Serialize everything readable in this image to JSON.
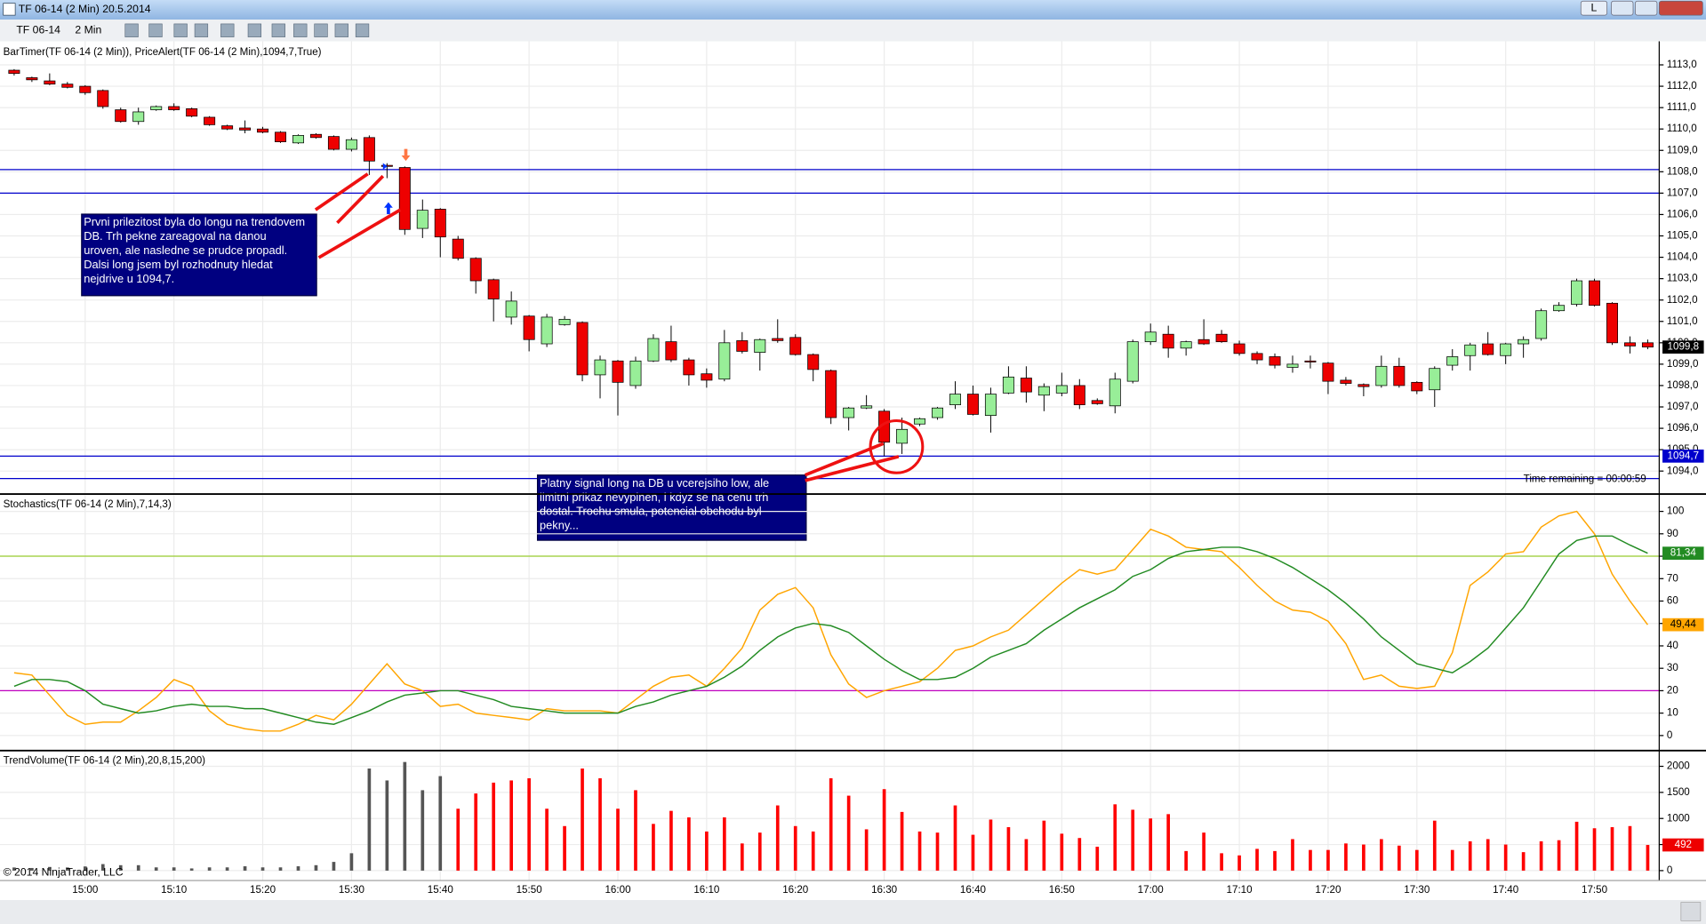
{
  "window": {
    "title": "TF 06-14 (2 Min)  20.5.2014",
    "button": "L"
  },
  "toolbar": {
    "instrument": "TF 06-14",
    "interval": "2 Min"
  },
  "copyright": "© 2014 NinjaTrader, LLC",
  "chart_data": [
    {
      "type": "candlestick",
      "title": "BarTimer(TF 06-14 (2 Min)), PriceAlert(TF 06-14 (2 Min),1094,7,True)",
      "categories": [
        null,
        null,
        null,
        null,
        "15:00",
        null,
        null,
        null,
        null,
        "15:10",
        null,
        null,
        null,
        null,
        "15:20",
        null,
        null,
        null,
        null,
        "15:30",
        null,
        null,
        null,
        null,
        "15:40",
        null,
        null,
        null,
        null,
        "15:50",
        null,
        null,
        null,
        null,
        "16:00",
        null,
        null,
        null,
        null,
        "16:10",
        null,
        null,
        null,
        null,
        "16:20",
        null,
        null,
        null,
        null,
        "16:30",
        null,
        null,
        null,
        null,
        "16:40",
        null,
        null,
        null,
        null,
        "16:50",
        null,
        null,
        null,
        null,
        "17:00",
        null,
        null,
        null,
        null,
        "17:10",
        null,
        null,
        null,
        null,
        "17:20",
        null,
        null,
        null,
        null,
        "17:30",
        null,
        null,
        null,
        null,
        "17:40",
        null,
        null,
        null,
        null,
        "17:50",
        null,
        null,
        null
      ],
      "open": [
        1112.75,
        1112.4,
        1112.25,
        1112.1,
        1112.0,
        1111.8,
        1110.9,
        1110.35,
        1110.9,
        1111.05,
        1110.95,
        1110.55,
        1110.15,
        1110.05,
        1110.0,
        1109.85,
        1109.35,
        1109.75,
        1109.65,
        1109.05,
        1109.6,
        1108.3,
        1108.2,
        1105.35,
        1106.25,
        1104.85,
        1103.95,
        1102.95,
        1101.2,
        1101.25,
        1099.95,
        1100.85,
        1100.95,
        1098.5,
        1099.15,
        1098.0,
        1099.15,
        1100.05,
        1099.2,
        1098.55,
        1098.3,
        1100.1,
        1099.55,
        1100.2,
        1100.25,
        1099.45,
        1098.7,
        1096.5,
        1096.95,
        1096.8,
        1095.3,
        1096.2,
        1096.5,
        1097.1,
        1097.6,
        1096.6,
        1097.65,
        1098.35,
        1097.55,
        1097.65,
        1098.0,
        1097.3,
        1097.05,
        1098.2,
        1100.05,
        1100.4,
        1099.75,
        1100.15,
        1100.4,
        1099.95,
        1099.5,
        1099.35,
        1098.85,
        1099.15,
        1099.05,
        1098.25,
        1098.05,
        1098.0,
        1098.9,
        1098.15,
        1097.8,
        1098.95,
        1099.4,
        1099.95,
        1099.4,
        1099.95,
        1100.2,
        1101.5,
        1101.8,
        1102.9,
        1101.85,
        1100.0,
        1100.0
      ],
      "high": [
        1112.8,
        1112.45,
        1112.6,
        1112.2,
        1112.05,
        1111.85,
        1111.0,
        1111.0,
        1111.1,
        1111.2,
        1111.0,
        1110.6,
        1110.2,
        1110.4,
        1110.1,
        1109.9,
        1109.75,
        1109.8,
        1109.7,
        1109.6,
        1109.7,
        1108.4,
        1108.25,
        1106.7,
        1106.3,
        1105.0,
        1104.0,
        1103.0,
        1102.4,
        1101.3,
        1101.35,
        1101.25,
        1101.0,
        1099.4,
        1099.2,
        1099.35,
        1100.4,
        1100.8,
        1099.3,
        1098.8,
        1100.6,
        1100.5,
        1100.2,
        1101.1,
        1100.4,
        1099.5,
        1098.75,
        1097.0,
        1097.55,
        1096.9,
        1096.5,
        1096.5,
        1097.0,
        1098.2,
        1098.0,
        1097.9,
        1098.9,
        1098.9,
        1098.1,
        1098.6,
        1098.3,
        1097.4,
        1098.6,
        1100.15,
        1100.9,
        1100.8,
        1100.1,
        1101.1,
        1100.6,
        1100.1,
        1099.6,
        1099.5,
        1099.4,
        1099.4,
        1099.1,
        1098.4,
        1098.1,
        1099.4,
        1099.3,
        1098.2,
        1098.9,
        1099.7,
        1100.0,
        1100.5,
        1100.0,
        1100.3,
        1101.6,
        1101.9,
        1103.0,
        1103.0,
        1101.9,
        1100.3,
        1100.15
      ],
      "low": [
        1112.5,
        1112.2,
        1112.05,
        1111.9,
        1111.6,
        1110.95,
        1110.3,
        1110.2,
        1110.85,
        1110.85,
        1110.55,
        1110.15,
        1109.95,
        1109.8,
        1109.8,
        1109.35,
        1109.3,
        1109.55,
        1109.0,
        1108.95,
        1107.85,
        1107.7,
        1105.05,
        1104.9,
        1104.0,
        1103.85,
        1102.3,
        1101.0,
        1100.85,
        1099.6,
        1099.8,
        1100.8,
        1098.2,
        1097.4,
        1096.6,
        1097.85,
        1099.1,
        1099.1,
        1098.0,
        1097.9,
        1098.2,
        1099.5,
        1098.7,
        1100.0,
        1099.4,
        1098.2,
        1096.2,
        1095.9,
        1096.9,
        1094.7,
        1094.8,
        1096.1,
        1096.4,
        1096.9,
        1096.6,
        1095.8,
        1097.6,
        1097.2,
        1096.8,
        1097.5,
        1096.9,
        1097.1,
        1096.7,
        1098.1,
        1099.9,
        1099.3,
        1099.4,
        1099.9,
        1100.0,
        1099.4,
        1099.0,
        1098.8,
        1098.6,
        1098.8,
        1097.6,
        1098.0,
        1097.5,
        1097.9,
        1097.9,
        1097.6,
        1097.0,
        1098.7,
        1098.7,
        1099.4,
        1099.0,
        1099.3,
        1100.1,
        1101.45,
        1101.7,
        1101.7,
        1099.9,
        1099.5,
        1099.7
      ],
      "close": [
        1112.6,
        1112.3,
        1112.1,
        1111.95,
        1111.7,
        1111.05,
        1110.35,
        1110.8,
        1111.05,
        1110.9,
        1110.6,
        1110.2,
        1110.0,
        1109.95,
        1109.85,
        1109.4,
        1109.7,
        1109.6,
        1109.05,
        1109.5,
        1108.5,
        1108.25,
        1105.3,
        1106.2,
        1104.95,
        1103.95,
        1102.9,
        1102.05,
        1101.95,
        1100.15,
        1101.2,
        1101.1,
        1098.5,
        1099.2,
        1098.15,
        1099.15,
        1100.2,
        1099.2,
        1098.5,
        1098.25,
        1100.0,
        1099.6,
        1100.15,
        1100.1,
        1099.45,
        1098.75,
        1096.5,
        1096.95,
        1097.05,
        1095.35,
        1095.95,
        1096.45,
        1096.95,
        1097.6,
        1096.65,
        1097.6,
        1098.4,
        1097.7,
        1097.95,
        1098.0,
        1097.1,
        1097.15,
        1098.3,
        1100.05,
        1100.5,
        1099.75,
        1100.05,
        1099.95,
        1100.05,
        1099.5,
        1099.2,
        1098.95,
        1099.0,
        1099.1,
        1098.2,
        1098.1,
        1097.95,
        1098.9,
        1098.0,
        1097.75,
        1098.8,
        1099.35,
        1099.9,
        1099.45,
        1099.95,
        1100.15,
        1101.5,
        1101.75,
        1102.9,
        1101.75,
        1100.0,
        1099.85,
        1099.8
      ],
      "up_color": "#98ee98",
      "down_color": "#ee0000",
      "ylim": [
        1093,
        1114
      ],
      "yticks": [
        {
          "value": 1094,
          "label": "1094,0"
        },
        {
          "value": 1095,
          "label": "1095,0"
        },
        {
          "value": 1096,
          "label": "1096,0"
        },
        {
          "value": 1097,
          "label": "1097,0"
        },
        {
          "value": 1098,
          "label": "1098,0"
        },
        {
          "value": 1099,
          "label": "1099,0"
        },
        {
          "value": 1100,
          "label": "1100,0"
        },
        {
          "value": 1101,
          "label": "1101,0"
        },
        {
          "value": 1102,
          "label": "1102,0"
        },
        {
          "value": 1103,
          "label": "1103,0"
        },
        {
          "value": 1104,
          "label": "1104,0"
        },
        {
          "value": 1105,
          "label": "1105,0"
        },
        {
          "value": 1106,
          "label": "1106,0"
        },
        {
          "value": 1107,
          "label": "1107,0"
        },
        {
          "value": 1108,
          "label": "1108,0"
        },
        {
          "value": 1109,
          "label": "1109,0"
        },
        {
          "value": 1110,
          "label": "1110,0"
        },
        {
          "value": 1111,
          "label": "1111,0"
        },
        {
          "value": 1112,
          "label": "1112,0"
        },
        {
          "value": 1113,
          "label": "1113,0"
        }
      ],
      "grid": true,
      "lines": [
        {
          "value": 1108.1,
          "color": "#0000cc"
        },
        {
          "value": 1107.0,
          "color": "#0000cc"
        },
        {
          "value": 1094.7,
          "color": "#0000cc"
        },
        {
          "value": 1093.65,
          "color": "#0000cc"
        }
      ],
      "markers": [
        {
          "value": 1099.8,
          "label": "1099,8",
          "color": "#000000"
        },
        {
          "value": 1094.7,
          "label": "1094,7",
          "color": "#0000cc"
        }
      ],
      "status": "Time remaining = 00:00:59",
      "annotations": [
        {
          "lines": [
            "Prvni prilezitost byla do longu na trendovem",
            "DB. Trh pekne zareagoval na danou",
            "uroven, ale nasledne se prudce propadl.",
            "Dalsi long jsem byl rozhodnuty hledat",
            "nejdrive u 1094,7."
          ]
        },
        {
          "lines": [
            "Platny signal long na DB u vcerejsiho low, ale",
            "limitni prikaz nevyplnen, i kdyz se na cenu trh",
            "dostal. Trochu smula, potencial obchodu byl",
            "pekny..."
          ]
        }
      ]
    },
    {
      "type": "line",
      "title": "Stochastics(TF 06-14 (2 Min),7,14,3)",
      "series": [
        {
          "color": "#ffa500",
          "values": [
            28,
            27,
            18,
            9,
            5,
            6,
            6,
            11,
            17,
            25,
            22,
            11,
            5,
            3,
            2,
            2,
            5,
            9,
            7,
            14,
            23,
            32,
            23,
            20,
            13,
            14,
            10,
            9,
            8,
            7,
            12,
            11,
            11,
            11,
            10,
            16,
            22,
            26,
            27,
            22,
            30,
            39,
            56,
            63,
            66,
            57,
            36,
            23,
            17,
            20,
            22,
            24,
            30,
            38,
            40,
            44,
            47,
            54,
            61,
            68,
            74,
            72,
            74,
            83,
            92,
            89,
            84,
            83,
            82,
            75,
            67,
            60,
            56,
            55,
            51,
            41,
            25,
            27,
            22,
            21,
            22,
            37,
            67,
            73,
            81,
            82,
            93,
            98,
            100,
            90,
            72,
            60,
            49.44
          ]
        },
        {
          "color": "#228b22",
          "values": [
            22,
            25,
            25,
            24,
            20,
            14,
            12,
            10,
            11,
            13,
            14,
            13,
            13,
            12,
            12,
            10,
            8,
            6,
            5,
            8,
            11,
            15,
            18,
            19,
            20,
            20,
            18,
            16,
            13,
            12,
            11,
            10,
            10,
            10,
            10,
            13,
            15,
            18,
            20,
            22,
            26,
            31,
            38,
            44,
            48,
            50,
            49,
            46,
            40,
            34,
            29,
            25,
            25,
            26,
            30,
            35,
            38,
            41,
            47,
            52,
            57,
            61,
            65,
            71,
            74,
            79,
            82,
            83,
            84,
            84,
            82,
            79,
            75,
            70,
            65,
            59,
            52,
            44,
            38,
            32,
            30,
            28,
            33,
            39,
            48,
            57,
            69,
            81,
            87,
            89,
            89,
            85,
            81.34
          ]
        }
      ],
      "ylim": [
        -6,
        107
      ],
      "yticks": [
        0,
        10,
        20,
        30,
        40,
        50,
        60,
        70,
        80,
        90,
        100
      ],
      "grid": true,
      "lines": [
        {
          "value": 80,
          "color": "#9acd32"
        },
        {
          "value": 20,
          "color": "#c000c0"
        }
      ],
      "markers": [
        {
          "value": 81.34,
          "label": "81,34",
          "color": "#228b22"
        },
        {
          "value": 49.44,
          "label": "49,44",
          "color": "#ffa500"
        }
      ]
    },
    {
      "type": "bar",
      "title": "TrendVolume(TF 06-14 (2 Min),20,8,15,200)",
      "values": [
        60,
        50,
        70,
        60,
        80,
        125,
        104,
        104,
        62,
        62,
        42,
        62,
        62,
        83,
        62,
        62,
        83,
        104,
        167,
        333,
        1958,
        1729,
        2083,
        1542,
        1812,
        1187,
        1479,
        1687,
        1729,
        1771,
        1187,
        854,
        1958,
        1771,
        1187,
        1542,
        896,
        1146,
        1021,
        750,
        1021,
        521,
        729,
        1250,
        854,
        750,
        1771,
        1437,
        792,
        1562,
        1125,
        750,
        729,
        1250,
        687,
        979,
        833,
        604,
        958,
        708,
        625,
        458,
        1271,
        1167,
        1000,
        1083,
        375,
        729,
        333,
        292,
        417,
        375,
        604,
        396,
        396,
        521,
        500,
        604,
        479,
        396,
        958,
        396,
        562,
        604,
        500,
        354,
        562,
        583,
        937,
        812,
        833,
        854,
        492
      ],
      "colors": [
        "#555555",
        "#555555",
        "#555555",
        "#555555",
        "#555555",
        "#555555",
        "#555555",
        "#555555",
        "#555555",
        "#555555",
        "#555555",
        "#555555",
        "#555555",
        "#555555",
        "#555555",
        "#555555",
        "#555555",
        "#555555",
        "#555555",
        "#555555",
        "#555555",
        "#555555",
        "#555555",
        "#555555",
        "#555555",
        "#ff0000",
        "#ff0000",
        "#ff0000",
        "#ff0000",
        "#ff0000",
        "#ff0000",
        "#ff0000",
        "#ff0000",
        "#ff0000",
        "#ff0000",
        "#ff0000",
        "#ff0000",
        "#ff0000",
        "#ff0000",
        "#ff0000",
        "#ff0000",
        "#ff0000",
        "#ff0000",
        "#ff0000",
        "#ff0000",
        "#ff0000",
        "#ff0000",
        "#ff0000",
        "#ff0000",
        "#ff0000",
        "#ff0000",
        "#ff0000",
        "#ff0000",
        "#ff0000",
        "#ff0000",
        "#ff0000",
        "#ff0000",
        "#ff0000",
        "#ff0000",
        "#ff0000",
        "#ff0000",
        "#ff0000",
        "#ff0000",
        "#ff0000",
        "#ff0000",
        "#ff0000",
        "#ff0000",
        "#ff0000",
        "#ff0000",
        "#ff0000",
        "#ff0000",
        "#ff0000",
        "#ff0000",
        "#ff0000",
        "#ff0000",
        "#ff0000",
        "#ff0000",
        "#ff0000",
        "#ff0000",
        "#ff0000",
        "#ff0000",
        "#ff0000",
        "#ff0000",
        "#ff0000",
        "#ff0000",
        "#ff0000",
        "#ff0000",
        "#ff0000",
        "#ff0000",
        "#ff0000",
        "#ff0000",
        "#ff0000",
        "#ff0000"
      ],
      "ylim": [
        -190,
        2270
      ],
      "yticks": [
        0,
        500,
        1000,
        1500,
        2000
      ],
      "grid": true,
      "markers": [
        {
          "value": 492,
          "label": "492",
          "color": "#ee0000"
        }
      ]
    }
  ]
}
